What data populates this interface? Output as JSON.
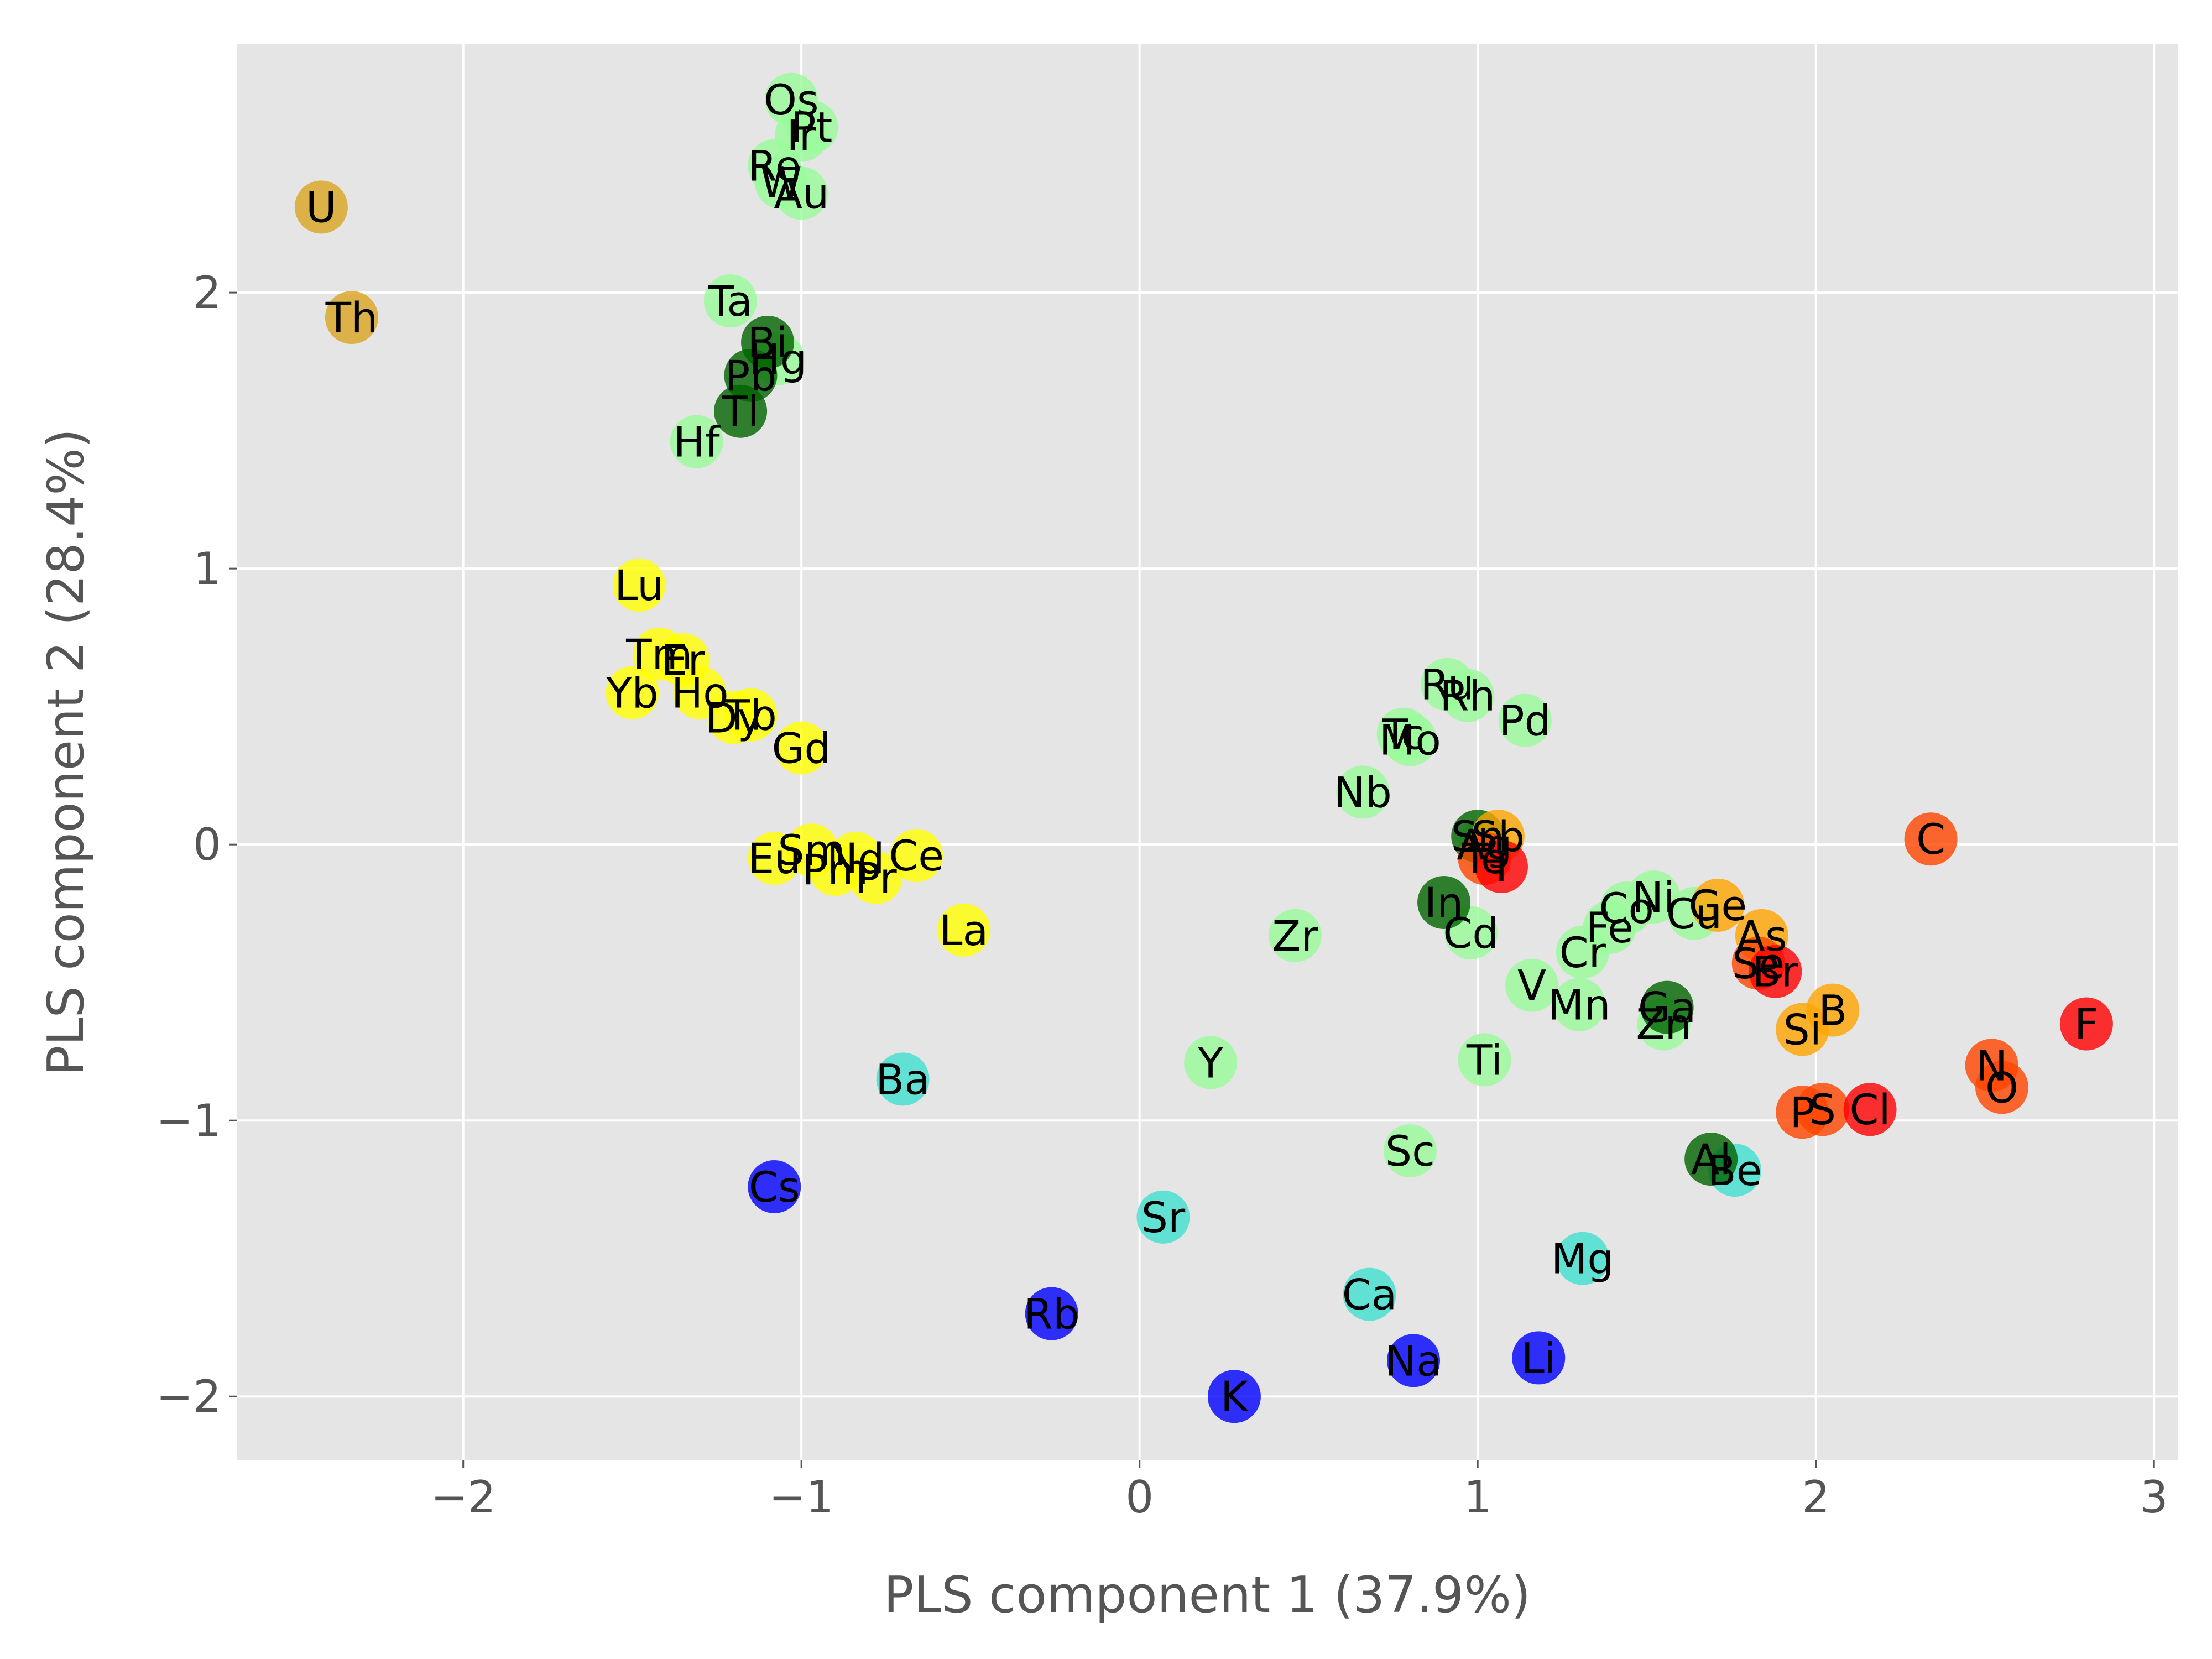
{
  "chart_data": {
    "type": "scatter",
    "title": "",
    "xlabel": "PLS component 1 (37.9%)",
    "ylabel": "PLS component 2 (28.4%)",
    "xlim": [
      -2.67,
      3.07
    ],
    "ylim": [
      -2.23,
      2.9
    ],
    "xticks": [
      -2,
      -1,
      0,
      1,
      2,
      3
    ],
    "yticks": [
      -2,
      -1,
      0,
      1,
      2
    ],
    "grid": true,
    "legend": "none",
    "colors": {
      "actinide": "#DAA520",
      "post_transition": "#006400",
      "transition": "#98FB98",
      "lanthanide": "#FFFF00",
      "alkaline_earth": "#40E0D0",
      "alkali": "#0000FF",
      "metalloid": "#FFA500",
      "nonmetal": "#FF4500",
      "halogen": "#FF0000"
    },
    "points": [
      {
        "label": "U",
        "x": -2.42,
        "y": 2.31,
        "group": "actinide"
      },
      {
        "label": "Th",
        "x": -2.33,
        "y": 1.91,
        "group": "actinide"
      },
      {
        "label": "Os",
        "x": -1.03,
        "y": 2.7,
        "group": "transition"
      },
      {
        "label": "Pt",
        "x": -0.97,
        "y": 2.6,
        "group": "transition"
      },
      {
        "label": "Ir",
        "x": -1.0,
        "y": 2.57,
        "group": "transition"
      },
      {
        "label": "Re",
        "x": -1.08,
        "y": 2.46,
        "group": "transition"
      },
      {
        "label": "W",
        "x": -1.06,
        "y": 2.4,
        "group": "transition"
      },
      {
        "label": "Au",
        "x": -1.0,
        "y": 2.36,
        "group": "transition"
      },
      {
        "label": "Ta",
        "x": -1.21,
        "y": 1.97,
        "group": "transition"
      },
      {
        "label": "Hg",
        "x": -1.07,
        "y": 1.76,
        "group": "transition"
      },
      {
        "label": "Hf",
        "x": -1.31,
        "y": 1.46,
        "group": "transition"
      },
      {
        "label": "Bi",
        "x": -1.1,
        "y": 1.82,
        "group": "post_transition"
      },
      {
        "label": "Pb",
        "x": -1.15,
        "y": 1.7,
        "group": "post_transition"
      },
      {
        "label": "Tl",
        "x": -1.18,
        "y": 1.57,
        "group": "post_transition"
      },
      {
        "label": "Lu",
        "x": -1.48,
        "y": 0.94,
        "group": "lanthanide"
      },
      {
        "label": "Tm",
        "x": -1.42,
        "y": 0.69,
        "group": "lanthanide"
      },
      {
        "label": "Er",
        "x": -1.35,
        "y": 0.67,
        "group": "lanthanide"
      },
      {
        "label": "Yb",
        "x": -1.5,
        "y": 0.55,
        "group": "lanthanide"
      },
      {
        "label": "Ho",
        "x": -1.3,
        "y": 0.55,
        "group": "lanthanide"
      },
      {
        "label": "Dy",
        "x": -1.2,
        "y": 0.46,
        "group": "lanthanide"
      },
      {
        "label": "Tb",
        "x": -1.15,
        "y": 0.47,
        "group": "lanthanide"
      },
      {
        "label": "Gd",
        "x": -1.0,
        "y": 0.35,
        "group": "lanthanide"
      },
      {
        "label": "Sm",
        "x": -0.97,
        "y": -0.02,
        "group": "lanthanide"
      },
      {
        "label": "Eu",
        "x": -1.08,
        "y": -0.05,
        "group": "lanthanide"
      },
      {
        "label": "Nd",
        "x": -0.84,
        "y": -0.05,
        "group": "lanthanide"
      },
      {
        "label": "Pm",
        "x": -0.9,
        "y": -0.09,
        "group": "lanthanide"
      },
      {
        "label": "Pr",
        "x": -0.78,
        "y": -0.12,
        "group": "lanthanide"
      },
      {
        "label": "Ce",
        "x": -0.66,
        "y": -0.04,
        "group": "lanthanide"
      },
      {
        "label": "La",
        "x": -0.52,
        "y": -0.31,
        "group": "lanthanide"
      },
      {
        "label": "Ba",
        "x": -0.7,
        "y": -0.85,
        "group": "alkaline_earth"
      },
      {
        "label": "Sr",
        "x": 0.07,
        "y": -1.35,
        "group": "alkaline_earth"
      },
      {
        "label": "Ca",
        "x": 0.68,
        "y": -1.63,
        "group": "alkaline_earth"
      },
      {
        "label": "Mg",
        "x": 1.31,
        "y": -1.5,
        "group": "alkaline_earth"
      },
      {
        "label": "Be",
        "x": 1.76,
        "y": -1.18,
        "group": "alkaline_earth"
      },
      {
        "label": "Cs",
        "x": -1.08,
        "y": -1.24,
        "group": "alkali"
      },
      {
        "label": "Rb",
        "x": -0.26,
        "y": -1.7,
        "group": "alkali"
      },
      {
        "label": "K",
        "x": 0.28,
        "y": -2.0,
        "group": "alkali"
      },
      {
        "label": "Na",
        "x": 0.81,
        "y": -1.87,
        "group": "alkali"
      },
      {
        "label": "Li",
        "x": 1.18,
        "y": -1.86,
        "group": "alkali"
      },
      {
        "label": "Y",
        "x": 0.21,
        "y": -0.79,
        "group": "transition"
      },
      {
        "label": "Zr",
        "x": 0.46,
        "y": -0.33,
        "group": "transition"
      },
      {
        "label": "Nb",
        "x": 0.66,
        "y": 0.19,
        "group": "transition"
      },
      {
        "label": "Tc",
        "x": 0.78,
        "y": 0.4,
        "group": "transition"
      },
      {
        "label": "Mo",
        "x": 0.8,
        "y": 0.38,
        "group": "transition"
      },
      {
        "label": "Ru",
        "x": 0.91,
        "y": 0.58,
        "group": "transition"
      },
      {
        "label": "Rh",
        "x": 0.97,
        "y": 0.54,
        "group": "transition"
      },
      {
        "label": "Pd",
        "x": 1.14,
        "y": 0.45,
        "group": "transition"
      },
      {
        "label": "Sc",
        "x": 0.8,
        "y": -1.11,
        "group": "transition"
      },
      {
        "label": "Ti",
        "x": 1.02,
        "y": -0.78,
        "group": "transition"
      },
      {
        "label": "V",
        "x": 1.16,
        "y": -0.51,
        "group": "transition"
      },
      {
        "label": "Cr",
        "x": 1.31,
        "y": -0.39,
        "group": "transition"
      },
      {
        "label": "Mn",
        "x": 1.3,
        "y": -0.58,
        "group": "transition"
      },
      {
        "label": "Fe",
        "x": 1.39,
        "y": -0.3,
        "group": "transition"
      },
      {
        "label": "Co",
        "x": 1.44,
        "y": -0.23,
        "group": "transition"
      },
      {
        "label": "Ni",
        "x": 1.52,
        "y": -0.19,
        "group": "transition"
      },
      {
        "label": "Cu",
        "x": 1.64,
        "y": -0.25,
        "group": "transition"
      },
      {
        "label": "Zn",
        "x": 1.55,
        "y": -0.65,
        "group": "transition"
      },
      {
        "label": "Cd",
        "x": 0.98,
        "y": -0.32,
        "group": "transition"
      },
      {
        "label": "Ag",
        "x": 1.02,
        "y": 0.0,
        "group": "transition"
      },
      {
        "label": "In",
        "x": 0.9,
        "y": -0.21,
        "group": "post_transition"
      },
      {
        "label": "Sn",
        "x": 1.0,
        "y": 0.03,
        "group": "post_transition"
      },
      {
        "label": "Ga",
        "x": 1.56,
        "y": -0.59,
        "group": "post_transition"
      },
      {
        "label": "Al",
        "x": 1.69,
        "y": -1.14,
        "group": "post_transition"
      },
      {
        "label": "Sb",
        "x": 1.06,
        "y": 0.03,
        "group": "metalloid"
      },
      {
        "label": "Ge",
        "x": 1.71,
        "y": -0.22,
        "group": "metalloid"
      },
      {
        "label": "As",
        "x": 1.84,
        "y": -0.33,
        "group": "metalloid"
      },
      {
        "label": "Si",
        "x": 1.96,
        "y": -0.67,
        "group": "metalloid"
      },
      {
        "label": "B",
        "x": 2.05,
        "y": -0.6,
        "group": "metalloid"
      },
      {
        "label": "Te",
        "x": 1.02,
        "y": -0.05,
        "group": "nonmetal"
      },
      {
        "label": "Se",
        "x": 1.83,
        "y": -0.43,
        "group": "nonmetal"
      },
      {
        "label": "C",
        "x": 2.34,
        "y": 0.02,
        "group": "nonmetal"
      },
      {
        "label": "P",
        "x": 1.96,
        "y": -0.97,
        "group": "nonmetal"
      },
      {
        "label": "S",
        "x": 2.02,
        "y": -0.96,
        "group": "nonmetal"
      },
      {
        "label": "N",
        "x": 2.52,
        "y": -0.8,
        "group": "nonmetal"
      },
      {
        "label": "O",
        "x": 2.55,
        "y": -0.88,
        "group": "nonmetal"
      },
      {
        "label": "I",
        "x": 1.07,
        "y": -0.08,
        "group": "halogen"
      },
      {
        "label": "Br",
        "x": 1.88,
        "y": -0.46,
        "group": "halogen"
      },
      {
        "label": "Cl",
        "x": 2.16,
        "y": -0.96,
        "group": "halogen"
      },
      {
        "label": "F",
        "x": 2.8,
        "y": -0.65,
        "group": "halogen"
      }
    ]
  }
}
